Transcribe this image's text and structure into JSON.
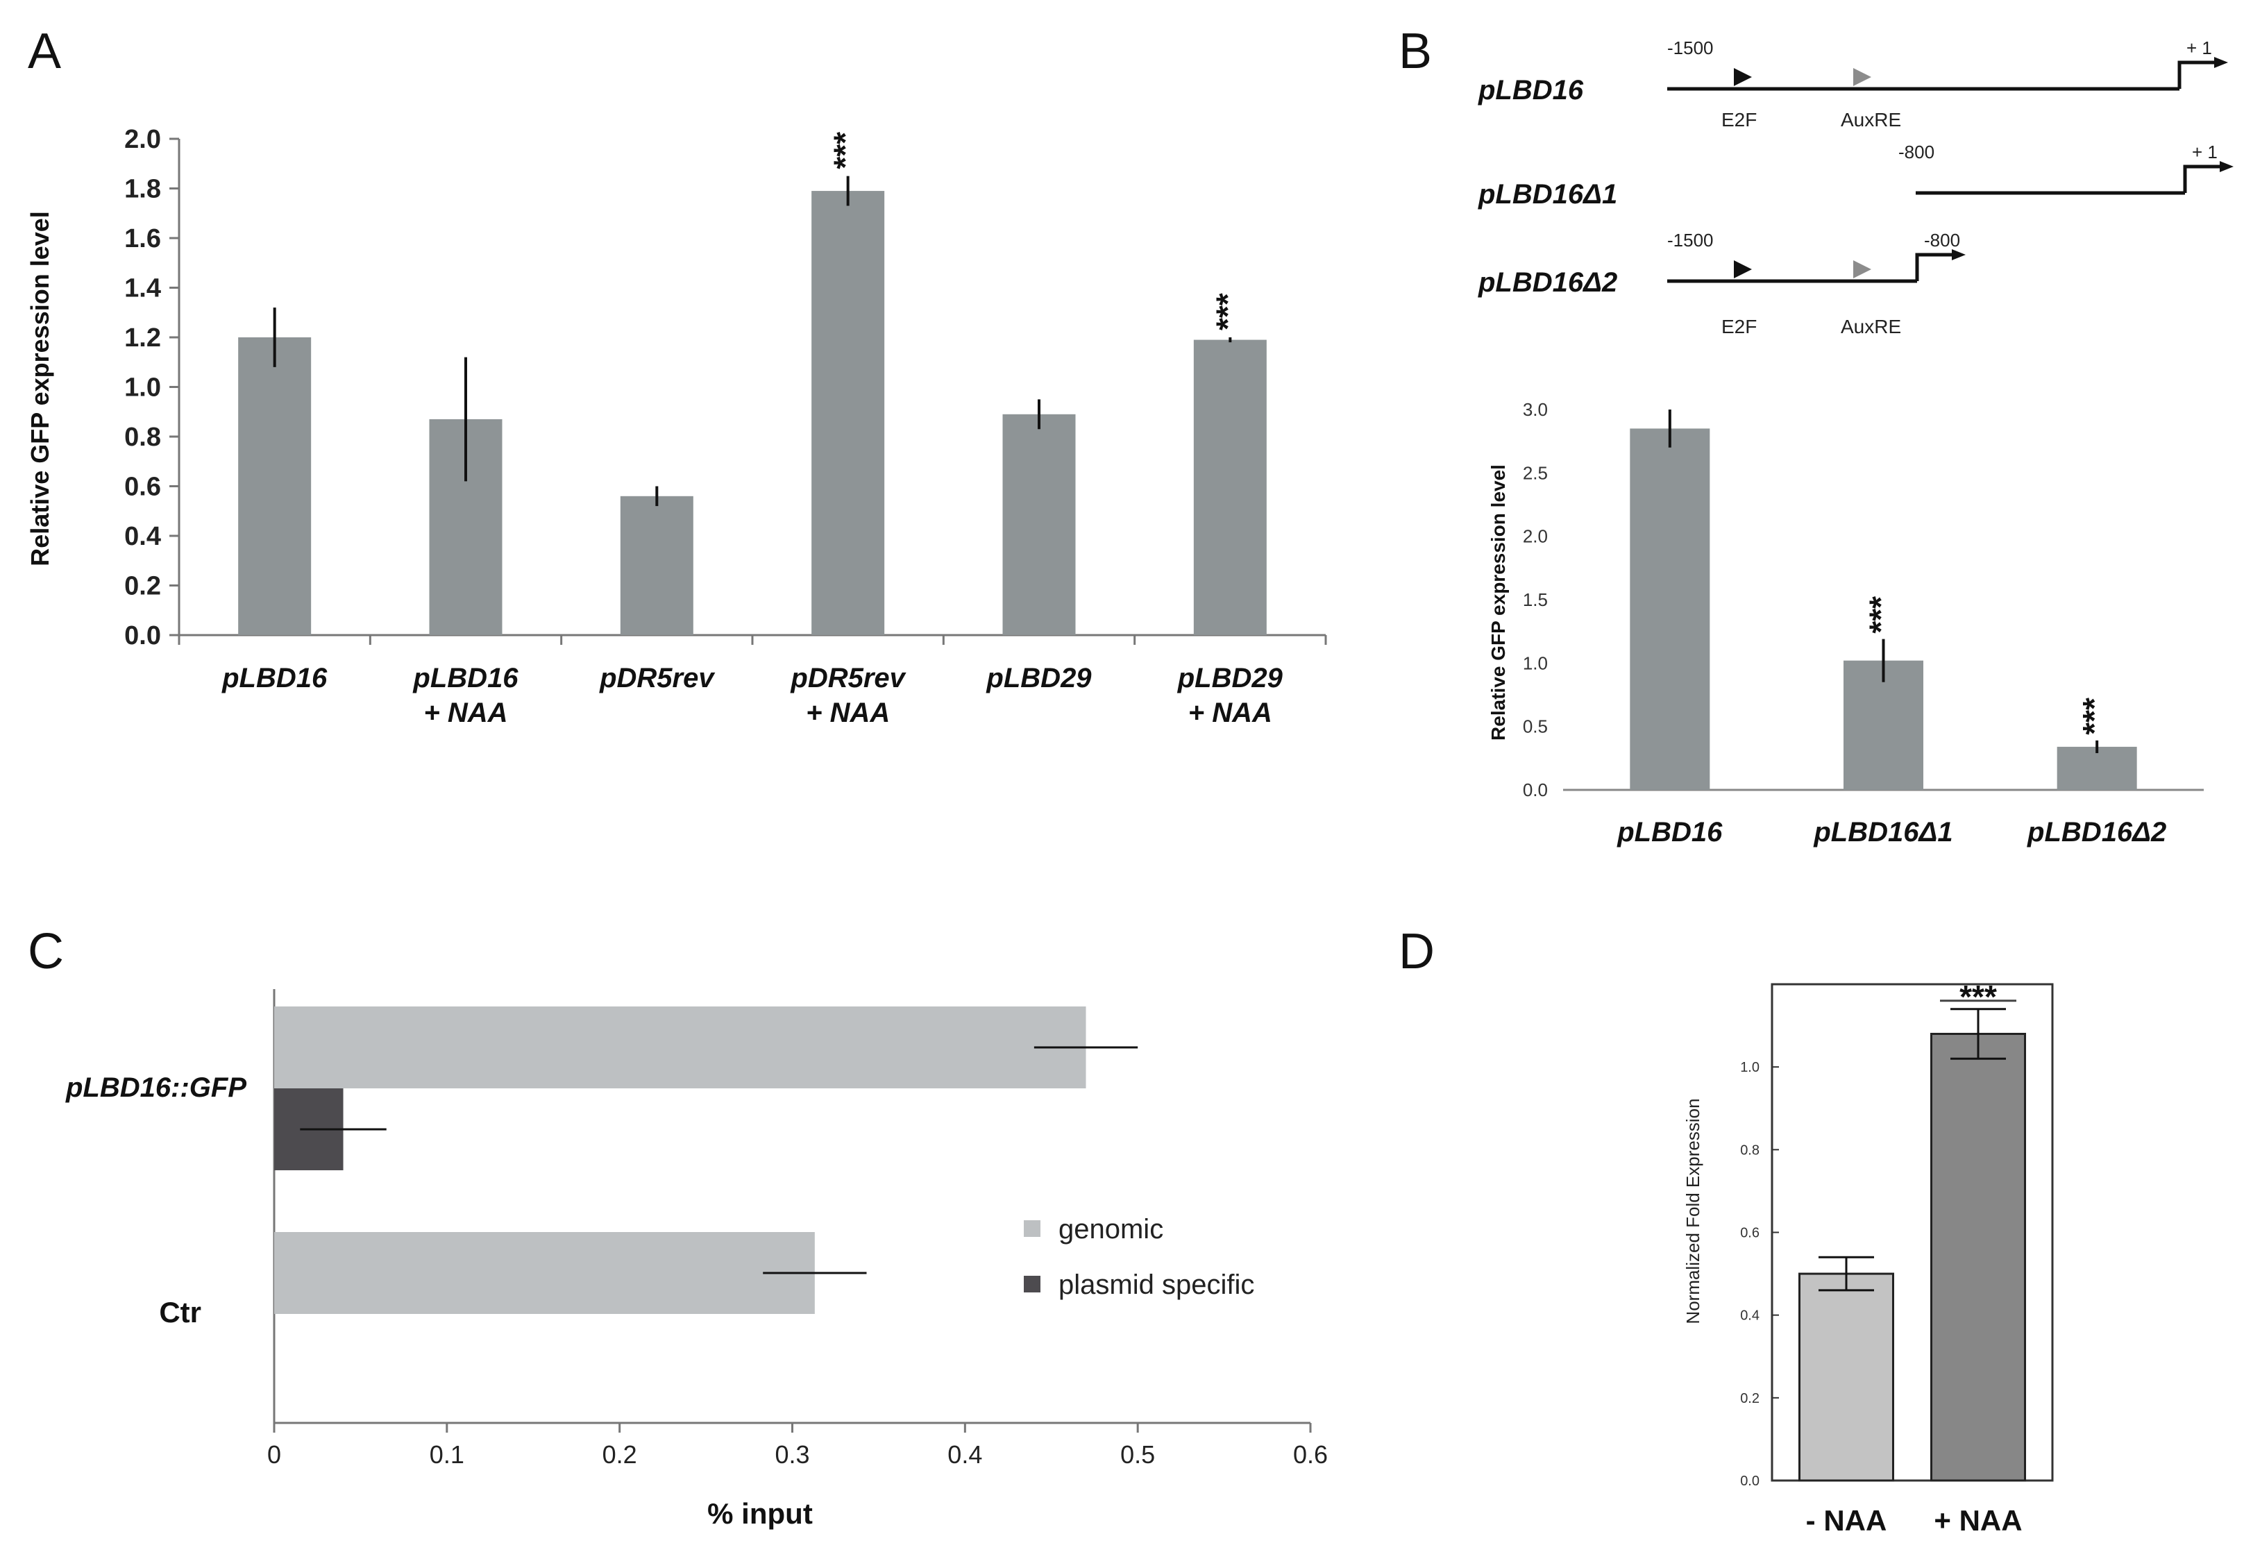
{
  "panels": {
    "A": {
      "letter": "A",
      "chart_data": {
        "type": "bar",
        "title": "",
        "xlabel": "",
        "ylabel": "Relative GFP expression level",
        "ylim": [
          0,
          2.0
        ],
        "yticks": [
          "0.0",
          "0.2",
          "0.4",
          "0.6",
          "0.8",
          "1.0",
          "1.2",
          "1.4",
          "1.6",
          "1.8",
          "2.0"
        ],
        "categories": [
          [
            "pLBD16"
          ],
          [
            "pLBD16",
            "+ NAA"
          ],
          [
            "pDR5rev"
          ],
          [
            "pDR5rev",
            "+ NAA"
          ],
          [
            "pLBD29"
          ],
          [
            "pLBD29",
            "+ NAA"
          ]
        ],
        "values": [
          1.2,
          0.87,
          0.56,
          1.79,
          0.89,
          1.19
        ],
        "errors": [
          0.12,
          0.25,
          0.04,
          0.06,
          0.06,
          0.01
        ],
        "significance": [
          "",
          "",
          "",
          "***",
          "",
          "***"
        ],
        "bar_color": "#8e9496"
      }
    },
    "B": {
      "letter": "B",
      "diagram": {
        "constructs": [
          {
            "name": "pLBD16",
            "start_label": "-1500",
            "tss_label": "+ 1",
            "sites": [
              "E2F",
              "AuxRE"
            ]
          },
          {
            "name": "pLBD16Δ1",
            "start_label": "-800",
            "tss_label": "+ 1",
            "sites": []
          },
          {
            "name": "pLBD16Δ2",
            "start_label": "-1500",
            "tss_label": "-800",
            "sites": [
              "E2F",
              "AuxRE"
            ]
          }
        ],
        "e2f_color": "#111111",
        "auxre_color": "#8c8c8c"
      },
      "chart_data": {
        "type": "bar",
        "title": "",
        "xlabel": "",
        "ylabel": "Relative GFP expression level",
        "ylim": [
          0,
          3.0
        ],
        "yticks": [
          "0.0",
          "0.5",
          "1.0",
          "1.5",
          "2.0",
          "2.5",
          "3.0"
        ],
        "categories": [
          "pLBD16",
          "pLBD16Δ1",
          "pLBD16Δ2"
        ],
        "values": [
          2.85,
          1.02,
          0.34
        ],
        "errors": [
          0.15,
          0.17,
          0.05
        ],
        "significance": [
          "",
          "***",
          "***"
        ],
        "bar_color": "#8e9496"
      }
    },
    "C": {
      "letter": "C",
      "chart_data": {
        "type": "bar",
        "orientation": "horizontal",
        "title": "",
        "xlabel": "% input",
        "ylabel": "",
        "xlim": [
          0,
          0.6
        ],
        "xticks": [
          "0",
          "0.1",
          "0.2",
          "0.3",
          "0.4",
          "0.5",
          "0.6"
        ],
        "categories": [
          "pLBD16::GFP",
          "Ctr"
        ],
        "series": [
          {
            "name": "genomic",
            "color": "#bdc0c2",
            "values": [
              0.47,
              0.313
            ],
            "errors": [
              0.03,
              0.03
            ]
          },
          {
            "name": "plasmid specific",
            "color": "#4d4b4f",
            "values": [
              0.04,
              0.0
            ],
            "errors": [
              0.025,
              0.0
            ]
          }
        ],
        "legend": "right"
      }
    },
    "D": {
      "letter": "D",
      "chart_data": {
        "type": "bar",
        "title": "",
        "xlabel": "",
        "ylabel": "Normalized Fold Expression",
        "ylim": [
          0,
          1.2
        ],
        "yticks": [
          "0.0",
          "0.2",
          "0.4",
          "0.6",
          "0.8",
          "1.0"
        ],
        "categories": [
          "- NAA",
          "+ NAA"
        ],
        "values": [
          0.5,
          1.08
        ],
        "errors": [
          0.04,
          0.06
        ],
        "significance": [
          "",
          "***"
        ],
        "colors": [
          "#c3c3c3",
          "#878787"
        ]
      }
    }
  }
}
